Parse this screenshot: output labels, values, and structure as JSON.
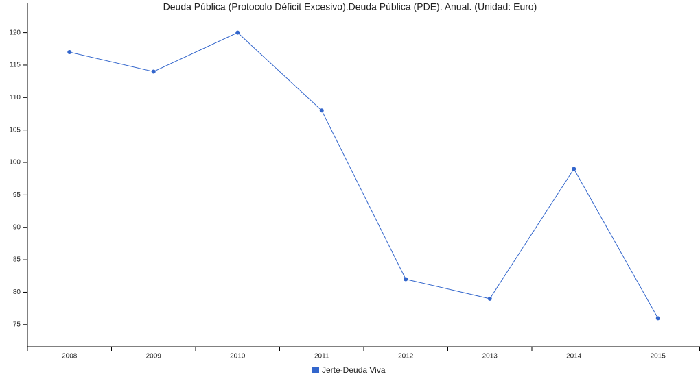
{
  "chart_data": {
    "type": "line",
    "title": "Deuda Pública (Protocolo Déficit Excesivo).Deuda Pública (PDE). Anual. (Unidad: Euro)",
    "categories": [
      "2008",
      "2009",
      "2010",
      "2011",
      "2012",
      "2013",
      "2014",
      "2015"
    ],
    "series": [
      {
        "name": "Jerte-Deuda Viva",
        "color": "#3366cc",
        "values": [
          117,
          114,
          120,
          108,
          82,
          79,
          99,
          76
        ]
      }
    ],
    "ylim": [
      71.6,
      124.5
    ],
    "yticks": [
      75,
      80,
      85,
      90,
      95,
      100,
      105,
      110,
      115,
      120
    ],
    "grid": false,
    "legend": "bottom"
  }
}
